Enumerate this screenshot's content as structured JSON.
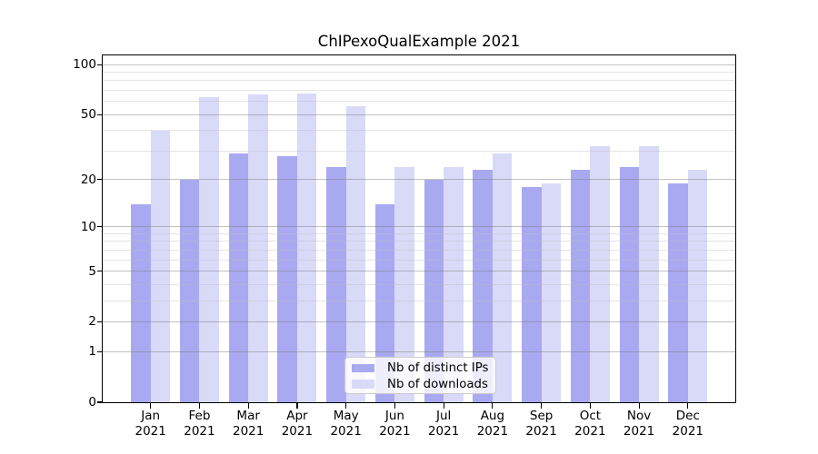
{
  "title": "ChIPexoQualExample 2021",
  "legend": {
    "position": "lower center",
    "items": [
      {
        "label": "Nb of distinct IPs",
        "color": "#a9a9f1"
      },
      {
        "label": "Nb of downloads",
        "color": "#d9d9f8"
      }
    ]
  },
  "chart_data": {
    "type": "bar",
    "title": "ChIPexoQualExample 2021",
    "categories": [
      "Jan",
      "Feb",
      "Mar",
      "Apr",
      "May",
      "Jun",
      "Jul",
      "Aug",
      "Sep",
      "Oct",
      "Nov",
      "Dec"
    ],
    "year_label": "2021",
    "series": [
      {
        "name": "Nb of distinct IPs",
        "color": "#a9a9f1",
        "values": [
          14,
          20,
          29,
          28,
          24,
          14,
          20,
          23,
          18,
          23,
          24,
          19
        ]
      },
      {
        "name": "Nb of downloads",
        "color": "#d9d9f8",
        "values": [
          40,
          64,
          66,
          67,
          56,
          24,
          24,
          29,
          19,
          32,
          32,
          23
        ]
      }
    ],
    "xlabel": "",
    "ylabel": "",
    "yscale": "log1p",
    "ylim": [
      0,
      113.5
    ],
    "yticks": [
      0,
      1,
      2,
      5,
      10,
      20,
      50,
      100
    ],
    "minor_gridlines": [
      3,
      4,
      6,
      7,
      8,
      9,
      30,
      40,
      60,
      70,
      80,
      90
    ],
    "grid": true,
    "legend_position": "lower center",
    "colors": {
      "grid_major": "rgba(120,120,120,0.45)",
      "grid_minor": "rgba(190,190,190,0.40)",
      "axis": "#000000",
      "background": "#ffffff"
    }
  }
}
